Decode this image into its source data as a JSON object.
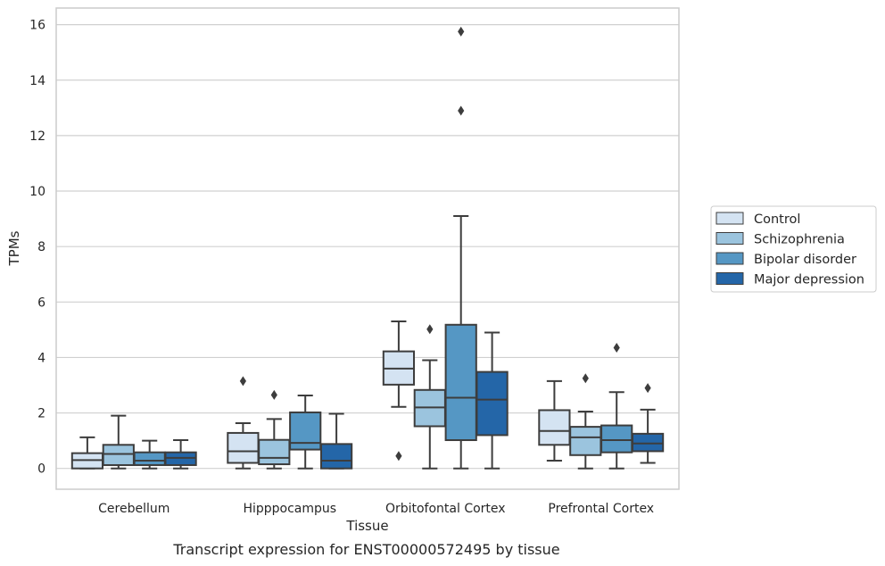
{
  "chart_data": {
    "type": "box",
    "xlabel": "Tissue",
    "ylabel": "TPMs",
    "caption": "Transcript expression for ENST00000572495 by tissue",
    "ylim": [
      -0.75,
      16.6
    ],
    "yticks": [
      "0",
      "2",
      "4",
      "6",
      "8",
      "10",
      "12",
      "14",
      "16"
    ],
    "grid": "horizontal",
    "legend_position": "right",
    "categories": [
      "Cerebellum",
      "Hipppocampus",
      "Orbitofontal Cortex",
      "Prefrontal Cortex"
    ],
    "series": [
      {
        "name": "Control",
        "color": "#d4e3f2",
        "boxes": [
          {
            "q1": 0.0,
            "median": 0.3,
            "q3": 0.55,
            "whisker_low": 0.0,
            "whisker_high": 1.12,
            "outliers": []
          },
          {
            "q1": 0.2,
            "median": 0.62,
            "q3": 1.28,
            "whisker_low": 0.0,
            "whisker_high": 1.63,
            "outliers": [
              3.15
            ]
          },
          {
            "q1": 3.02,
            "median": 3.6,
            "q3": 4.22,
            "whisker_low": 2.22,
            "whisker_high": 5.3,
            "outliers": [
              0.45
            ]
          },
          {
            "q1": 0.85,
            "median": 1.35,
            "q3": 2.1,
            "whisker_low": 0.28,
            "whisker_high": 3.15,
            "outliers": []
          }
        ]
      },
      {
        "name": "Schizophrenia",
        "color": "#9bc4de",
        "boxes": [
          {
            "q1": 0.12,
            "median": 0.52,
            "q3": 0.85,
            "whisker_low": 0.0,
            "whisker_high": 1.9,
            "outliers": []
          },
          {
            "q1": 0.15,
            "median": 0.38,
            "q3": 1.03,
            "whisker_low": 0.0,
            "whisker_high": 1.78,
            "outliers": [
              2.65
            ]
          },
          {
            "q1": 1.52,
            "median": 2.2,
            "q3": 2.83,
            "whisker_low": 0.0,
            "whisker_high": 3.9,
            "outliers": [
              5.02
            ]
          },
          {
            "q1": 0.48,
            "median": 1.12,
            "q3": 1.5,
            "whisker_low": 0.0,
            "whisker_high": 2.05,
            "outliers": [
              3.25
            ]
          }
        ]
      },
      {
        "name": "Bipolar disorder",
        "color": "#5597c4",
        "boxes": [
          {
            "q1": 0.12,
            "median": 0.28,
            "q3": 0.58,
            "whisker_low": 0.0,
            "whisker_high": 1.0,
            "outliers": []
          },
          {
            "q1": 0.68,
            "median": 0.92,
            "q3": 2.02,
            "whisker_low": 0.0,
            "whisker_high": 2.63,
            "outliers": []
          },
          {
            "q1": 1.02,
            "median": 2.55,
            "q3": 5.18,
            "whisker_low": 0.0,
            "whisker_high": 9.1,
            "outliers": [
              12.9,
              15.75
            ]
          },
          {
            "q1": 0.58,
            "median": 1.02,
            "q3": 1.55,
            "whisker_low": 0.0,
            "whisker_high": 2.75,
            "outliers": [
              4.35
            ]
          }
        ]
      },
      {
        "name": "Major depression",
        "color": "#2466a8",
        "boxes": [
          {
            "q1": 0.12,
            "median": 0.38,
            "q3": 0.58,
            "whisker_low": 0.0,
            "whisker_high": 1.02,
            "outliers": []
          },
          {
            "q1": 0.0,
            "median": 0.28,
            "q3": 0.88,
            "whisker_low": 0.0,
            "whisker_high": 1.97,
            "outliers": []
          },
          {
            "q1": 1.2,
            "median": 2.48,
            "q3": 3.48,
            "whisker_low": 0.0,
            "whisker_high": 4.9,
            "outliers": []
          },
          {
            "q1": 0.62,
            "median": 0.9,
            "q3": 1.25,
            "whisker_low": 0.2,
            "whisker_high": 2.12,
            "outliers": [
              2.9
            ]
          }
        ]
      }
    ]
  }
}
